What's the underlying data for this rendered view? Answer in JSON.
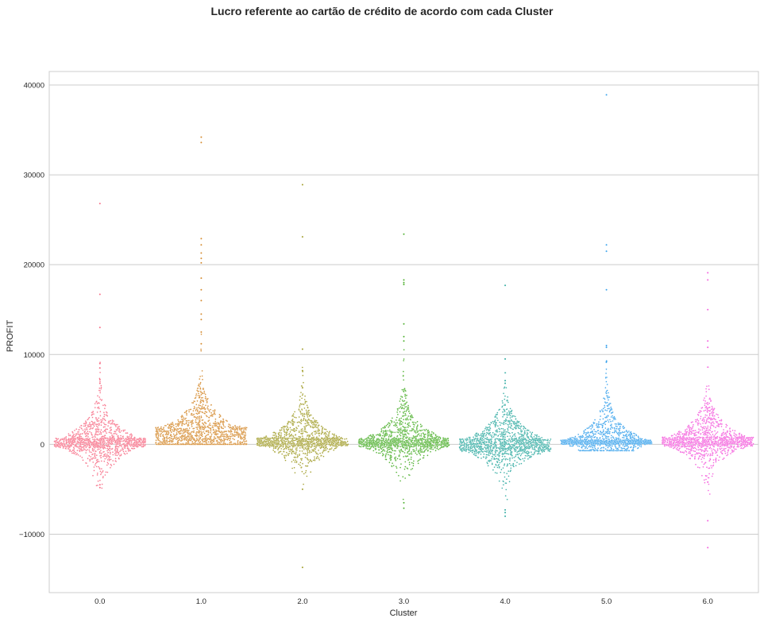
{
  "chart_data": {
    "type": "scatter",
    "subtype": "swarm",
    "title": "Lucro referente ao cartão de crédito de acordo com cada Cluster",
    "xlabel": "Cluster",
    "ylabel": "PROFIT",
    "ylim": [
      -16500,
      41500
    ],
    "grid": true,
    "legend": "none",
    "categories": [
      "0.0",
      "1.0",
      "2.0",
      "3.0",
      "4.0",
      "5.0",
      "6.0"
    ],
    "yticks": [
      {
        "value": 40000,
        "label": "40000"
      },
      {
        "value": 30000,
        "label": "30000"
      },
      {
        "value": 20000,
        "label": "20000"
      },
      {
        "value": 10000,
        "label": "10000"
      },
      {
        "value": 0,
        "label": "0"
      },
      {
        "value": -10000,
        "label": "−10000"
      }
    ],
    "series": [
      {
        "category": "0.0",
        "color": "#f77189",
        "median": 0,
        "core": [
          -300,
          700
        ],
        "range": [
          -5000,
          26800
        ],
        "outliers": [
          26800,
          16700,
          13000,
          9000,
          8500,
          7200,
          6800,
          -4800,
          -4500
        ]
      },
      {
        "category": "1.0",
        "color": "#d58c32",
        "median": 1000,
        "core": [
          0,
          1900
        ],
        "range": [
          0,
          34200
        ],
        "outliers": [
          34200,
          33600,
          22900,
          22200,
          21300,
          20700,
          20200,
          18500,
          17200,
          16000,
          14500,
          13900,
          12500,
          11200
        ]
      },
      {
        "category": "2.0",
        "color": "#a4a031",
        "median": 200,
        "core": [
          -200,
          700
        ],
        "range": [
          -13700,
          28900
        ],
        "outliers": [
          28900,
          23100,
          10600,
          8200,
          6300,
          -5000,
          -13700
        ]
      },
      {
        "category": "3.0",
        "color": "#50b131",
        "median": 400,
        "core": [
          -300,
          700
        ],
        "range": [
          -7100,
          23400
        ],
        "outliers": [
          23400,
          18300,
          18000,
          17800,
          13400,
          12000,
          11500,
          -6500,
          -7100
        ]
      },
      {
        "category": "4.0",
        "color": "#36ada4",
        "median": -200,
        "core": [
          -800,
          600
        ],
        "range": [
          -8000,
          17700
        ],
        "outliers": [
          17700,
          9500,
          7100,
          6800,
          -7300,
          -7600,
          -8000
        ]
      },
      {
        "category": "5.0",
        "color": "#3ba3ec",
        "median": 300,
        "core": [
          0,
          500
        ],
        "range": [
          -700,
          38900
        ],
        "outliers": [
          38900,
          22200,
          21500,
          17200,
          11000,
          10800,
          9200
        ]
      },
      {
        "category": "6.0",
        "color": "#f461dd",
        "median": 400,
        "core": [
          -200,
          800
        ],
        "range": [
          -11500,
          19100
        ],
        "outliers": [
          19100,
          18300,
          15000,
          11500,
          10800,
          -4200,
          -8500,
          -11500
        ]
      }
    ]
  }
}
